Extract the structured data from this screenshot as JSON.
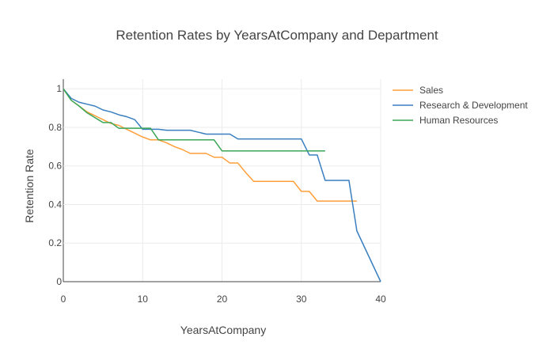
{
  "chart_data": {
    "type": "line",
    "title": "Retention Rates by YearsAtCompany and Department",
    "xlabel": "YearsAtCompany",
    "ylabel": "Retention Rate",
    "xlim": [
      0,
      40
    ],
    "ylim": [
      0,
      1.05
    ],
    "xticks": [
      0,
      10,
      20,
      30,
      40
    ],
    "yticks": [
      0,
      0.2,
      0.4,
      0.6,
      0.8,
      1
    ],
    "ytick_labels": [
      "0",
      "0.2",
      "0.4",
      "0.6",
      "0.8",
      "1"
    ],
    "grid": true,
    "legend_position": "top-right",
    "series": [
      {
        "name": "Sales",
        "color": "#ff9f3a",
        "x": [
          0,
          1,
          2,
          3,
          4,
          5,
          6,
          7,
          8,
          9,
          10,
          11,
          12,
          13,
          14,
          15,
          16,
          17,
          18,
          19,
          20,
          21,
          22,
          23,
          24,
          25,
          26,
          27,
          28,
          29,
          30,
          31,
          32,
          33,
          34,
          35,
          36,
          37
        ],
        "y": [
          1.0,
          0.94,
          0.91,
          0.88,
          0.86,
          0.84,
          0.82,
          0.81,
          0.79,
          0.77,
          0.75,
          0.735,
          0.735,
          0.72,
          0.7,
          0.685,
          0.665,
          0.665,
          0.665,
          0.645,
          0.645,
          0.615,
          0.615,
          0.565,
          0.52,
          0.52,
          0.52,
          0.52,
          0.52,
          0.52,
          0.468,
          0.468,
          0.418,
          0.418,
          0.418,
          0.418,
          0.418,
          0.418
        ]
      },
      {
        "name": "Research & Development",
        "color": "#3a7fc0",
        "x": [
          0,
          1,
          2,
          3,
          4,
          5,
          6,
          7,
          8,
          9,
          10,
          11,
          12,
          13,
          14,
          15,
          16,
          17,
          18,
          19,
          20,
          21,
          22,
          23,
          24,
          25,
          26,
          27,
          28,
          29,
          30,
          31,
          32,
          33,
          34,
          35,
          36,
          37,
          40
        ],
        "y": [
          1.0,
          0.95,
          0.93,
          0.92,
          0.91,
          0.89,
          0.88,
          0.865,
          0.855,
          0.84,
          0.79,
          0.79,
          0.79,
          0.785,
          0.785,
          0.785,
          0.785,
          0.775,
          0.765,
          0.765,
          0.765,
          0.765,
          0.74,
          0.74,
          0.74,
          0.74,
          0.74,
          0.74,
          0.74,
          0.74,
          0.74,
          0.657,
          0.657,
          0.525,
          0.525,
          0.525,
          0.525,
          0.263,
          0.0
        ]
      },
      {
        "name": "Human Resources",
        "color": "#3aa657",
        "x": [
          0,
          1,
          2,
          3,
          4,
          5,
          6,
          7,
          8,
          9,
          10,
          11,
          12,
          13,
          14,
          15,
          16,
          17,
          18,
          19,
          20,
          21,
          22,
          23,
          24,
          25,
          26,
          27,
          28,
          29,
          30,
          31,
          32,
          33
        ],
        "y": [
          1.0,
          0.94,
          0.91,
          0.875,
          0.85,
          0.825,
          0.825,
          0.795,
          0.795,
          0.795,
          0.795,
          0.795,
          0.735,
          0.735,
          0.735,
          0.735,
          0.735,
          0.735,
          0.735,
          0.735,
          0.678,
          0.678,
          0.678,
          0.678,
          0.678,
          0.678,
          0.678,
          0.678,
          0.678,
          0.678,
          0.678,
          0.678,
          0.678,
          0.678
        ]
      }
    ]
  }
}
